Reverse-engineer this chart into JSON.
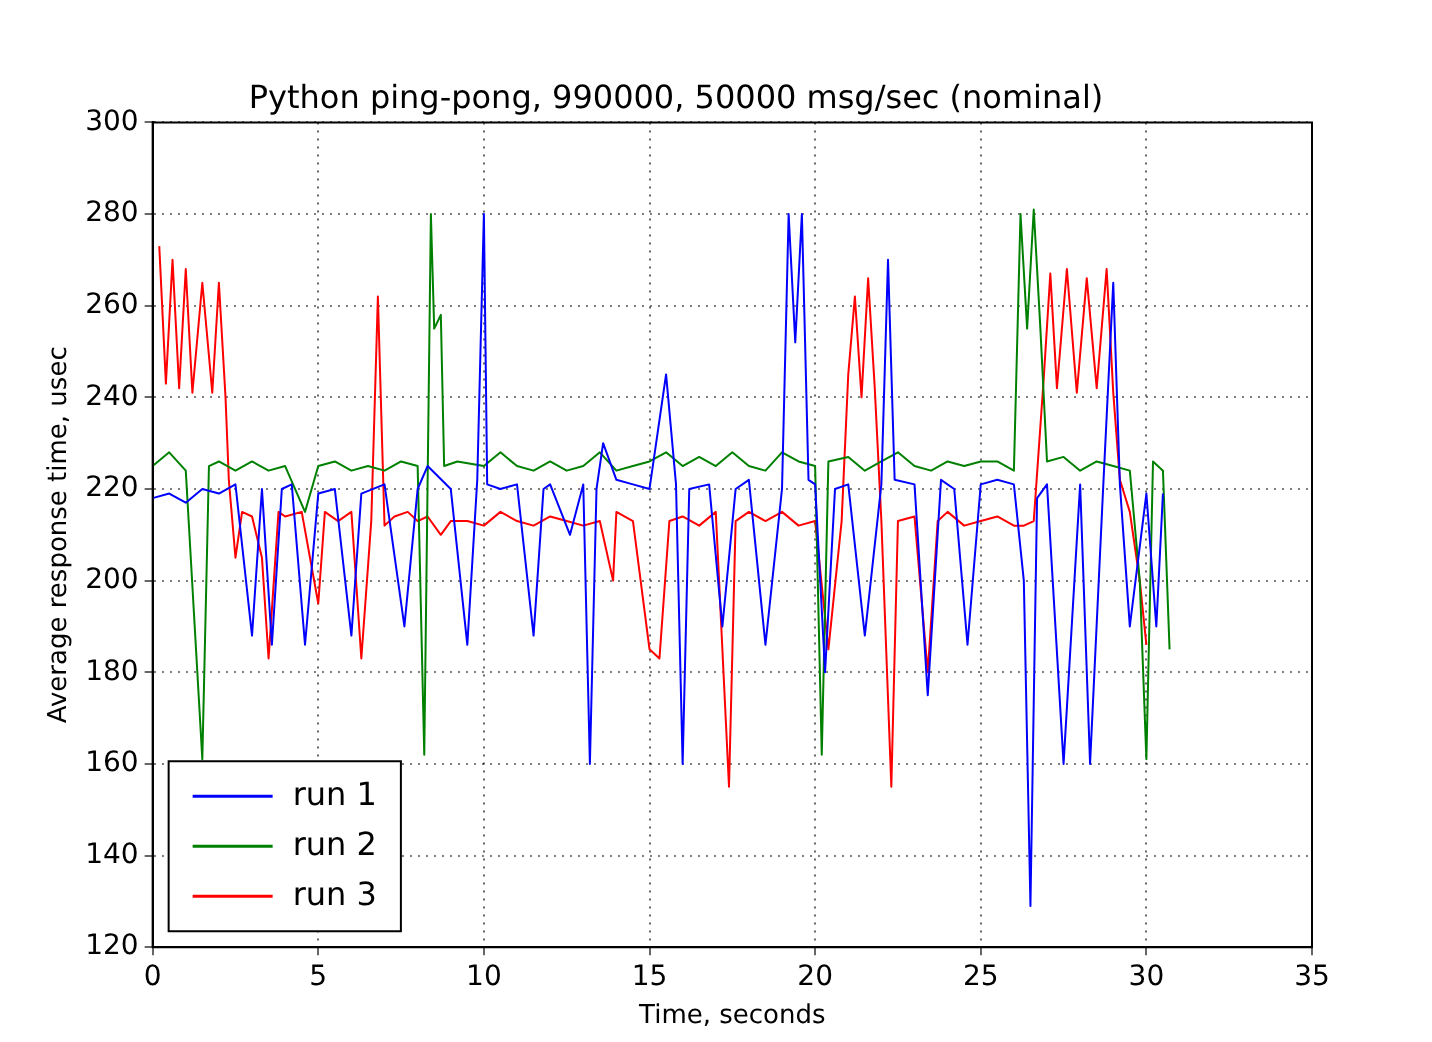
{
  "chart_data": {
    "type": "line",
    "title": "Python ping-pong, 990000, 50000 msg/sec (nominal)",
    "xlabel": "Time, seconds",
    "ylabel": "Average response time, usec",
    "xlim": [
      0,
      35
    ],
    "xticks": [
      0,
      5,
      10,
      15,
      20,
      25,
      30,
      35
    ],
    "ylim": [
      120,
      300
    ],
    "yticks": [
      120,
      140,
      160,
      180,
      200,
      220,
      240,
      260,
      280,
      300
    ],
    "grid": true,
    "legend": "bottom left",
    "marker": "none",
    "line_style": "solid",
    "series": [
      {
        "name": "run 1",
        "color": "#0000ff",
        "x": [
          0,
          0.5,
          1,
          1.5,
          2,
          2.5,
          3,
          3.3,
          3.6,
          3.9,
          4.2,
          4.6,
          5,
          5.5,
          6,
          6.3,
          7,
          7.6,
          8,
          8.3,
          9,
          9.5,
          9.8,
          10,
          10.1,
          10.5,
          11,
          11.5,
          11.8,
          12,
          12.6,
          13,
          13.2,
          13.4,
          13.6,
          14,
          14.5,
          15,
          15.5,
          15.8,
          16,
          16.2,
          16.8,
          17.2,
          17.6,
          18,
          18.5,
          19,
          19.2,
          19.4,
          19.6,
          19.8,
          20,
          20.3,
          20.6,
          21,
          21.5,
          22,
          22.2,
          22.4,
          23,
          23.4,
          23.8,
          24.2,
          24.6,
          25,
          25.5,
          26,
          26.3,
          26.5,
          26.7,
          27,
          27.5,
          28,
          28.3,
          28.7,
          29,
          29.2,
          29.5,
          30,
          30.3,
          30.5
        ],
        "values": [
          218,
          219,
          217,
          220,
          219,
          221,
          188,
          220,
          186,
          220,
          221,
          186,
          219,
          220,
          188,
          219,
          221,
          190,
          220,
          225,
          220,
          186,
          222,
          280,
          221,
          220,
          221,
          188,
          220,
          221,
          210,
          221,
          160,
          220,
          230,
          222,
          221,
          220,
          245,
          221,
          160,
          220,
          221,
          190,
          220,
          222,
          186,
          220,
          280,
          252,
          280,
          222,
          221,
          180,
          220,
          221,
          188,
          221,
          270,
          222,
          221,
          175,
          222,
          220,
          186,
          221,
          222,
          221,
          200,
          129,
          218,
          221,
          160,
          221,
          160,
          221,
          265,
          221,
          190,
          219,
          190,
          219
        ]
      },
      {
        "name": "run 2",
        "color": "#008000",
        "x": [
          0,
          0.5,
          1,
          1.5,
          1.7,
          2,
          2.5,
          3,
          3.5,
          4,
          4.6,
          5,
          5.5,
          6,
          6.5,
          7,
          7.5,
          8,
          8.2,
          8.4,
          8.5,
          8.7,
          8.8,
          9.2,
          10,
          10.5,
          11,
          11.5,
          12,
          12.5,
          13,
          13.5,
          14,
          14.5,
          15,
          15.5,
          16,
          16.5,
          17,
          17.5,
          18,
          18.5,
          19,
          19.5,
          20,
          20.2,
          20.4,
          21,
          21.5,
          22,
          22.5,
          23,
          23.5,
          24,
          24.5,
          25,
          25.5,
          26,
          26.2,
          26.4,
          26.6,
          26.8,
          27,
          27.5,
          28,
          28.5,
          29,
          29.5,
          29.8,
          30,
          30.2,
          30.5,
          30.7
        ],
        "values": [
          225,
          228,
          224,
          161,
          225,
          226,
          224,
          226,
          224,
          225,
          215,
          225,
          226,
          224,
          225,
          224,
          226,
          225,
          162,
          280,
          255,
          258,
          225,
          226,
          225,
          228,
          225,
          224,
          226,
          224,
          225,
          228,
          224,
          225,
          226,
          228,
          225,
          227,
          225,
          228,
          225,
          224,
          228,
          226,
          225,
          162,
          226,
          227,
          224,
          226,
          228,
          225,
          224,
          226,
          225,
          226,
          226,
          224,
          280,
          255,
          281,
          255,
          226,
          227,
          224,
          226,
          225,
          224,
          200,
          161,
          226,
          224,
          185
        ]
      },
      {
        "name": "run 3",
        "color": "#ff0000",
        "x": [
          0.2,
          0.4,
          0.6,
          0.8,
          1,
          1.2,
          1.5,
          1.8,
          2,
          2.2,
          2.3,
          2.5,
          2.7,
          3,
          3.3,
          3.5,
          3.8,
          4,
          4.5,
          5,
          5.2,
          5.6,
          6,
          6.3,
          6.6,
          6.8,
          7,
          7.3,
          7.7,
          8,
          8.3,
          8.7,
          9,
          9.5,
          10,
          10.5,
          11,
          11.5,
          12,
          12.5,
          13,
          13.5,
          13.9,
          14,
          14.5,
          15,
          15.3,
          15.6,
          16,
          16.5,
          17,
          17.4,
          17.6,
          18,
          18.5,
          19,
          19.5,
          20,
          20.4,
          20.8,
          21,
          21.2,
          21.4,
          21.6,
          21.8,
          22,
          22.3,
          22.5,
          23,
          23.4,
          23.7,
          24,
          24.5,
          25,
          25.5,
          26,
          26.3,
          26.6,
          26.9,
          27.1,
          27.3,
          27.6,
          27.9,
          28.2,
          28.5,
          28.8,
          29,
          29.2,
          29.5,
          29.8,
          30
        ],
        "values": [
          273,
          243,
          270,
          242,
          268,
          241,
          265,
          241,
          265,
          240,
          222,
          205,
          215,
          214,
          205,
          183,
          215,
          214,
          215,
          195,
          215,
          213,
          215,
          183,
          213,
          262,
          212,
          214,
          215,
          213,
          214,
          210,
          213,
          213,
          212,
          215,
          213,
          212,
          214,
          213,
          212,
          213,
          200,
          215,
          213,
          185,
          183,
          213,
          214,
          212,
          215,
          155,
          213,
          215,
          213,
          215,
          212,
          213,
          185,
          213,
          245,
          262,
          240,
          266,
          242,
          213,
          155,
          213,
          214,
          180,
          213,
          215,
          212,
          213,
          214,
          212,
          212,
          213,
          244,
          267,
          242,
          268,
          241,
          266,
          242,
          268,
          241,
          222,
          215,
          200,
          186
        ]
      }
    ]
  }
}
